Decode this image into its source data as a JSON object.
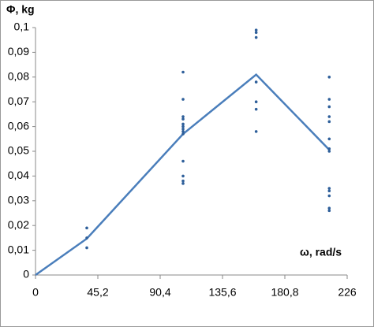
{
  "chart_data": {
    "type": "scatter",
    "ylabel": "Φ, kg",
    "xlabel": "ω, rad/s",
    "xlim": [
      0,
      226
    ],
    "ylim": [
      0,
      0.1
    ],
    "xticks": [
      0,
      {
        "value": 45.2,
        "label": "45,2"
      },
      {
        "value": 90.4,
        "label": "90,4"
      },
      {
        "value": 135.6,
        "label": "135,6"
      },
      {
        "value": 180.8,
        "label": "180,8"
      },
      {
        "value": 226,
        "label": "226"
      }
    ],
    "yticks": [
      0,
      {
        "value": 0.01,
        "label": "0,01"
      },
      {
        "value": 0.02,
        "label": "0,02"
      },
      {
        "value": 0.03,
        "label": "0,03"
      },
      {
        "value": 0.04,
        "label": "0,04"
      },
      {
        "value": 0.05,
        "label": "0,05"
      },
      {
        "value": 0.06,
        "label": "0,06"
      },
      {
        "value": 0.07,
        "label": "0,07"
      },
      {
        "value": 0.08,
        "label": "0,08"
      },
      {
        "value": 0.09,
        "label": "0,09"
      },
      {
        "value": 0.1,
        "label": "0,1"
      }
    ],
    "grid": false,
    "points": {
      "color": "#2e5f9a",
      "x": [
        37.2,
        37.2,
        37.2,
        107,
        107,
        107,
        107,
        107,
        107,
        107,
        107,
        107,
        107,
        107,
        107,
        107,
        160,
        160,
        160,
        160,
        160,
        160,
        160,
        213,
        213,
        213,
        213,
        213,
        213,
        213,
        213,
        213,
        213,
        213,
        213,
        213
      ],
      "y": [
        0.019,
        0.015,
        0.011,
        0.082,
        0.071,
        0.064,
        0.063,
        0.061,
        0.06,
        0.059,
        0.058,
        0.057,
        0.046,
        0.04,
        0.038,
        0.037,
        0.099,
        0.098,
        0.096,
        0.078,
        0.07,
        0.067,
        0.058,
        0.08,
        0.071,
        0.068,
        0.064,
        0.062,
        0.055,
        0.051,
        0.05,
        0.035,
        0.034,
        0.032,
        0.027,
        0.026
      ]
    },
    "line": {
      "color": "#4a7ebb",
      "x": [
        0,
        37.2,
        107,
        160,
        213
      ],
      "y": [
        0,
        0.0147,
        0.057,
        0.081,
        0.0506
      ]
    }
  }
}
